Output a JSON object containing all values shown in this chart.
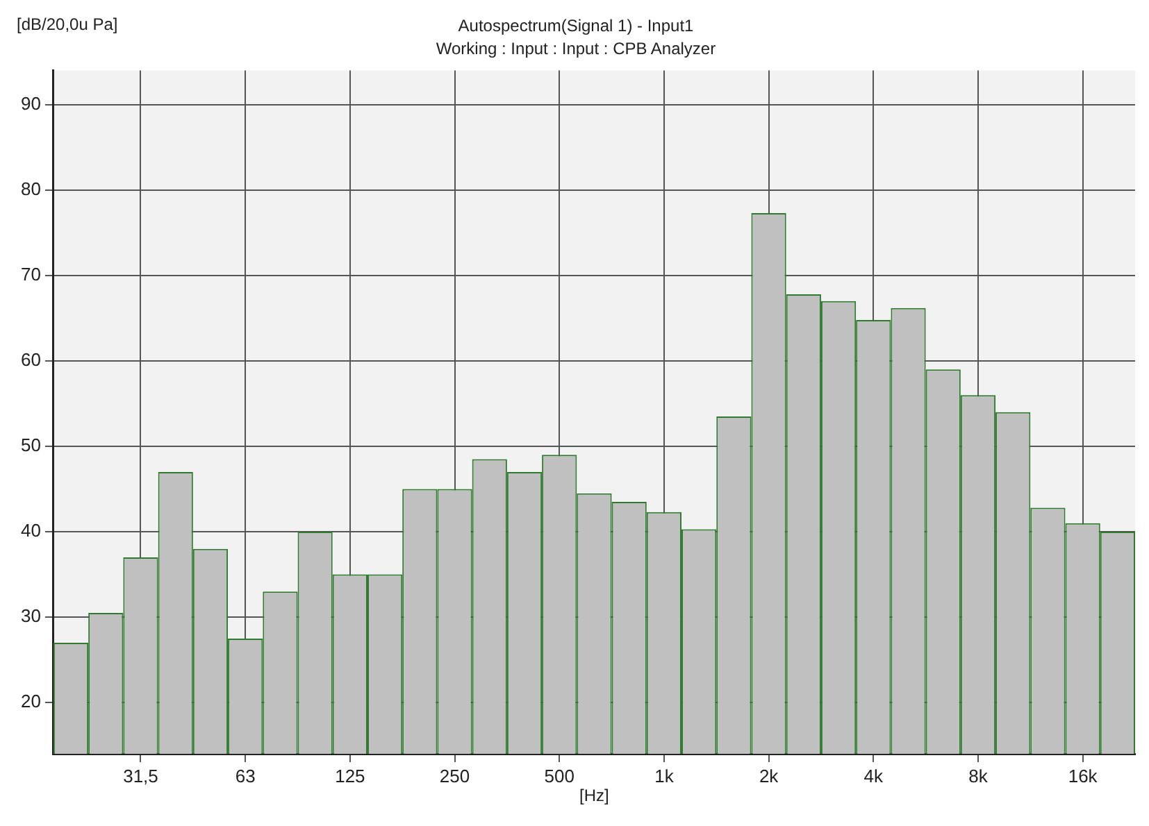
{
  "chart_data": {
    "type": "bar",
    "title": "Autospectrum(Signal 1) - Input1",
    "subtitle": "Working : Input : Input : CPB Analyzer",
    "ylabel": "[dB/20,0u Pa]",
    "xlabel": "[Hz]",
    "categories": [
      null,
      null,
      "31,5",
      null,
      null,
      "63",
      null,
      null,
      "125",
      null,
      null,
      "250",
      null,
      null,
      "500",
      null,
      null,
      "1k",
      null,
      null,
      "2k",
      null,
      null,
      "4k",
      null,
      null,
      "8k",
      null,
      null,
      "16k",
      null
    ],
    "values": [
      27,
      30.5,
      37,
      47,
      38,
      27.5,
      33,
      40,
      35,
      35,
      45,
      45,
      48.5,
      47,
      49,
      44.5,
      43.5,
      42.3,
      40.3,
      53.5,
      77.3,
      67.8,
      67,
      64.8,
      66.2,
      59,
      56,
      54,
      42.8,
      41,
      40
    ],
    "color": "#c0c0c0",
    "ylim": [
      14,
      94
    ],
    "yticks": [
      20,
      30,
      40,
      50,
      60,
      70,
      80,
      90
    ],
    "grid": true,
    "legend": false
  }
}
